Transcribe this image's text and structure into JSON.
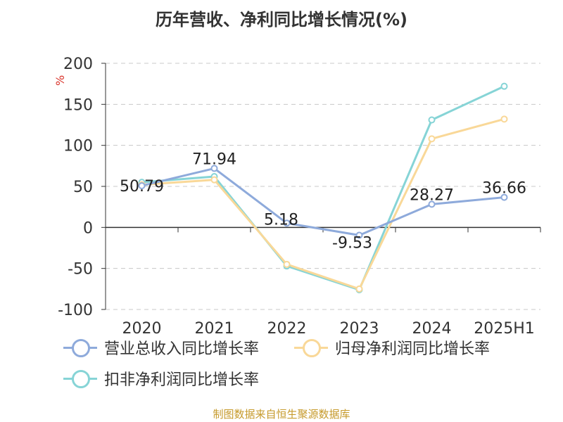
{
  "title": "历年营收、净利同比增长情况(%)",
  "source": "制图数据来自恒生聚源数据库",
  "chart_data": {
    "type": "line",
    "title": "历年营收、净利同比增长情况(%)",
    "ylabel": "%",
    "xlabel": "",
    "categories": [
      "2020",
      "2021",
      "2022",
      "2023",
      "2024",
      "2025H1"
    ],
    "ylim": [
      -100,
      200
    ],
    "yticks": [
      200,
      150,
      100,
      50,
      0,
      -50,
      -100
    ],
    "grid": true,
    "legend_position": "bottom",
    "series": [
      {
        "name": "营业总收入同比增长率",
        "color": "#8eaadb",
        "values": [
          50.79,
          71.94,
          5.18,
          -9.53,
          28.27,
          36.66
        ],
        "labels": [
          "50.79",
          "71.94",
          "5.18",
          "-9.53",
          "28.27",
          "36.66"
        ]
      },
      {
        "name": "归母净利润同比增长率",
        "color": "#f9d898",
        "values": [
          52,
          58,
          -45,
          -75,
          108,
          132
        ]
      },
      {
        "name": "扣非净利润同比增长率",
        "color": "#86d4d6",
        "values": [
          55,
          62,
          -47,
          -76,
          131,
          172
        ]
      }
    ]
  }
}
